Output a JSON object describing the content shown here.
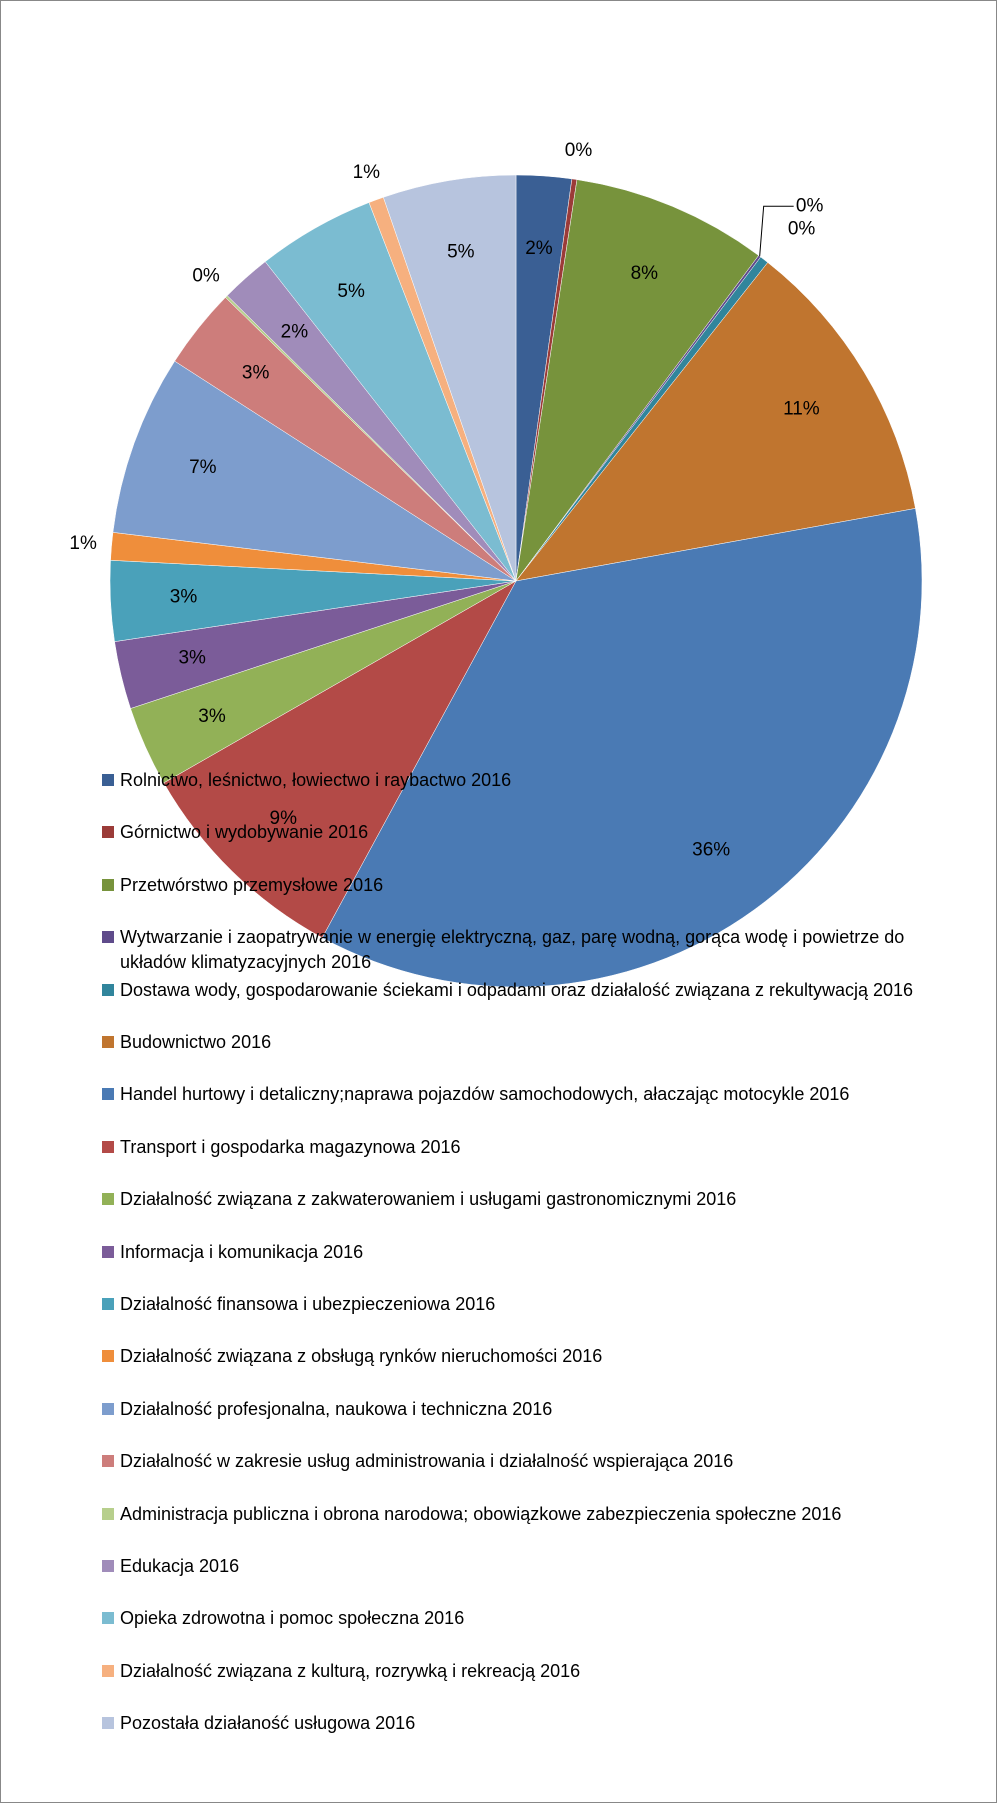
{
  "chart_data": {
    "type": "pie",
    "categories": [
      "Rolnictwo, leśnictwo, łowiectwo i raybactwo 2016",
      "Górnictwo i wydobywanie 2016",
      "Przetwórstwo przemysłowe 2016",
      "Wytwarzanie i zaopatrywanie w energię elektryczną, gaz, parę wodną, gorąca wodę i powietrze do układów klimatyzacyjnych 2016",
      "Dostawa wody, gospodarowanie ściekami i odpadami oraz działalość związana z rekultywacją 2016",
      "Budownictwo 2016",
      "Handel hurtowy i detaliczny;naprawa pojazdów samochodowych, ałaczając motocykle 2016",
      "Transport i gospodarka magazynowa 2016",
      "Działalność związana z zakwaterowaniem i usługami gastronomicznymi 2016",
      "Informacja i komunikacja 2016",
      "Działalność finansowa i ubezpieczeniowa 2016",
      "Działalność związana z obsługą rynków nieruchomości 2016",
      "Działalność profesjonalna, naukowa i techniczna 2016",
      "Działalność w zakresie usług administrowania i działalność wspierająca 2016",
      "Administracja publiczna i obrona narodowa; obowiązkowe zabezpieczenia społeczne 2016",
      "Edukacja 2016",
      "Opieka zdrowotna i pomoc społeczna 2016",
      "Działalność związana z kulturą, rozrywką i rekreacją 2016",
      "Pozostała działaność usługowa 2016"
    ],
    "values": [
      2.2,
      0.2,
      7.8,
      0.1,
      0.35,
      11.5,
      35.8,
      8.8,
      3.2,
      2.7,
      3.2,
      1.1,
      7.2,
      3.2,
      0.1,
      2.0,
      4.7,
      0.6,
      5.3
    ],
    "value_labels": [
      "2%",
      "0%",
      "8%",
      "0%",
      "0%",
      "11%",
      "36%",
      "9%",
      "3%",
      "3%",
      "3%",
      "1%",
      "7%",
      "3%",
      "0%",
      "2%",
      "5%",
      "1%",
      "5%"
    ],
    "colors": [
      "#3a5f94",
      "#9b3b38",
      "#77933c",
      "#5f4b8b",
      "#31859c",
      "#c0752f",
      "#4a7ab4",
      "#b34a47",
      "#92b157",
      "#7b5c99",
      "#4aa1ba",
      "#ef8e3b",
      "#7d9dcd",
      "#cd7d7b",
      "#b7cf8c",
      "#a08cba",
      "#7bbcd1",
      "#f6b07f",
      "#b7c4de"
    ]
  }
}
